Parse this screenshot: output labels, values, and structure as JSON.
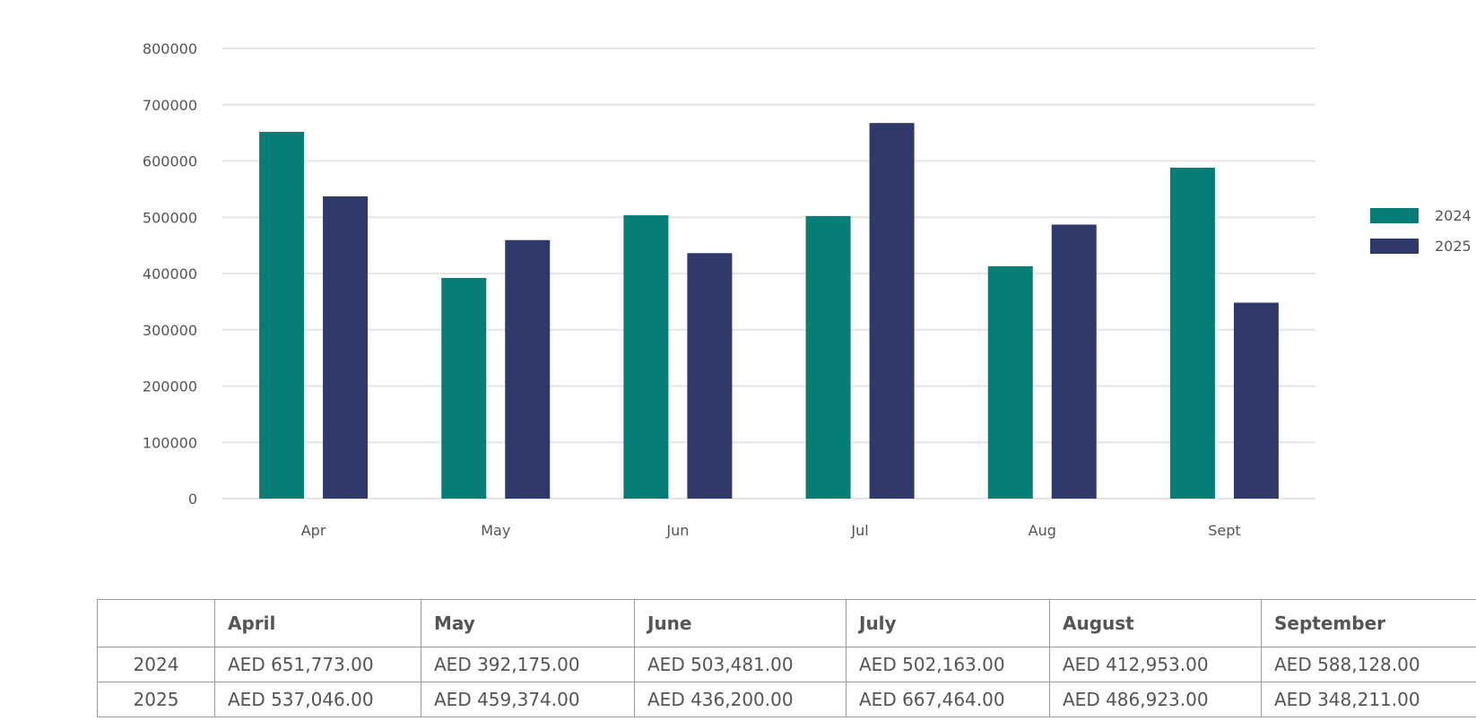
{
  "chart_data": {
    "type": "bar",
    "categories": [
      "Apr",
      "May",
      "Jun",
      "Jul",
      "Aug",
      "Sept"
    ],
    "series": [
      {
        "name": "2024",
        "color": "#077d78",
        "values": [
          651773,
          392175,
          503481,
          502163,
          412953,
          588128
        ]
      },
      {
        "name": "2025",
        "color": "#2f3a6b",
        "values": [
          537046,
          459374,
          436200,
          667464,
          486923,
          348211
        ]
      }
    ],
    "ylim": [
      0,
      800000
    ],
    "yticks": [
      "0",
      "100000",
      "200000",
      "300000",
      "400000",
      "500000",
      "600000",
      "700000",
      "800000"
    ],
    "grid": true,
    "legend_position": "right"
  },
  "table": {
    "headers": [
      "",
      "April",
      "May",
      "June",
      "July",
      "August",
      "September"
    ],
    "rows": [
      {
        "label": "2024",
        "cells": [
          "AED 651,773.00",
          "AED 392,175.00",
          "AED 503,481.00",
          "AED 502,163.00",
          "AED 412,953.00",
          "AED 588,128.00"
        ]
      },
      {
        "label": "2025",
        "cells": [
          "AED 537,046.00",
          "AED 459,374.00",
          "AED 436,200.00",
          "AED 667,464.00",
          "AED 486,923.00",
          "AED 348,211.00"
        ]
      }
    ]
  }
}
